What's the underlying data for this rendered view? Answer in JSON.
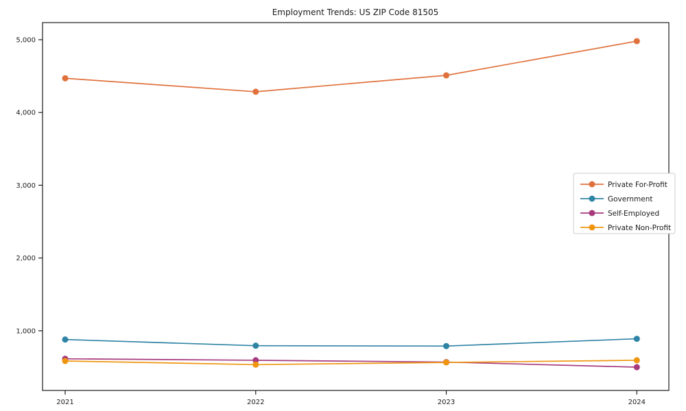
{
  "figure": {
    "background": "#ffffff",
    "axis_color": "#1a1a1a",
    "legend_border_color": "#cccccc"
  },
  "chart_data": {
    "type": "line",
    "title": "Employment Trends: US ZIP Code 81505",
    "xlabel": "",
    "ylabel": "",
    "x": [
      "2021",
      "2022",
      "2023",
      "2024"
    ],
    "series": [
      {
        "name": "Private For-Profit",
        "color": "#e0713c",
        "values": [
          4470,
          4285,
          4510,
          4980
        ]
      },
      {
        "name": "Government",
        "color": "#2f84a5",
        "values": [
          880,
          795,
          790,
          890
        ]
      },
      {
        "name": "Self-Employed",
        "color": "#a63a7d",
        "values": [
          615,
          595,
          570,
          500
        ]
      },
      {
        "name": "Private Non-Profit",
        "color": "#ef9510",
        "values": [
          585,
          535,
          565,
          595
        ]
      }
    ],
    "yticks": [
      {
        "value": 1000,
        "label": "1,000"
      },
      {
        "value": 2000,
        "label": "2,000"
      },
      {
        "value": 3000,
        "label": "3,000"
      },
      {
        "value": 4000,
        "label": "4,000"
      },
      {
        "value": 5000,
        "label": "5,000"
      }
    ],
    "ylim": [
      180,
      5235
    ],
    "grid": false,
    "legend_position": "center right",
    "marker": "circle"
  }
}
